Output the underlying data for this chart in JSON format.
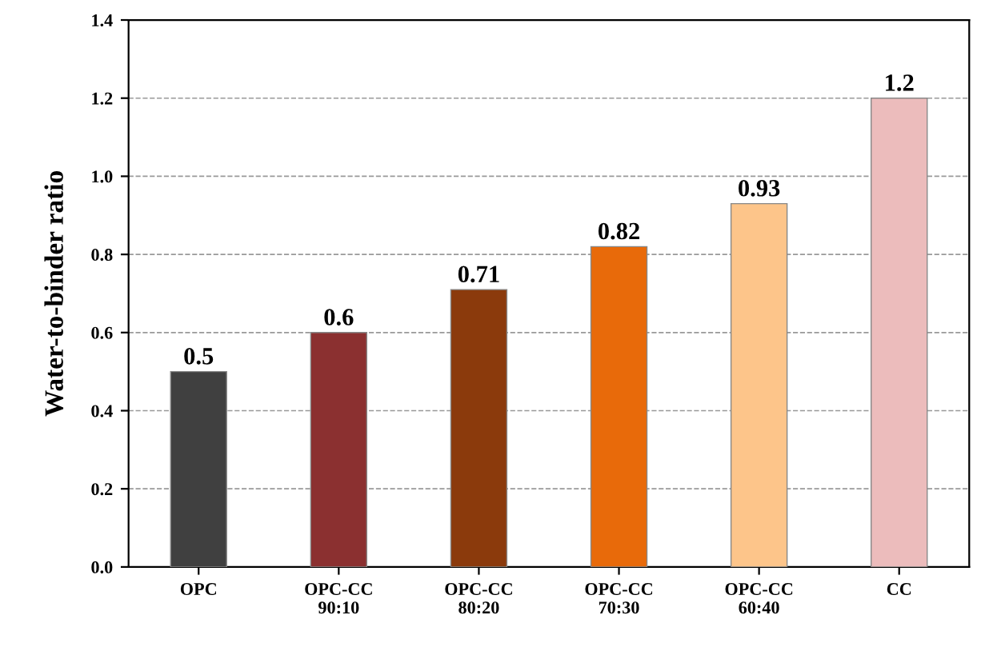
{
  "chart_data": {
    "type": "bar",
    "ylabel": "Water-to-binder ratio",
    "categories": [
      "OPC",
      "OPC-CC\n90:10",
      "OPC-CC\n80:20",
      "OPC-CC\n70:30",
      "OPC-CC\n60:40",
      "CC"
    ],
    "values": [
      0.5,
      0.6,
      0.71,
      0.82,
      0.93,
      1.2
    ],
    "colors": [
      "#404040",
      "#8b3030",
      "#8b3a0c",
      "#e86a0a",
      "#fdc58a",
      "#ecbcbc"
    ],
    "data_labels": true,
    "ylim": [
      0,
      1.4
    ],
    "yticks": [
      {
        "value": 0,
        "label": "0.0"
      },
      {
        "value": 0.2,
        "label": "0.2"
      },
      {
        "value": 0.4,
        "label": "0.4"
      },
      {
        "value": 0.6,
        "label": "0.6"
      },
      {
        "value": 0.8,
        "label": "0.8"
      },
      {
        "value": 1.0,
        "label": "1.0"
      },
      {
        "value": 1.2,
        "label": "1.2"
      },
      {
        "value": 1.4,
        "label": "1.4"
      }
    ],
    "grid": "y"
  }
}
